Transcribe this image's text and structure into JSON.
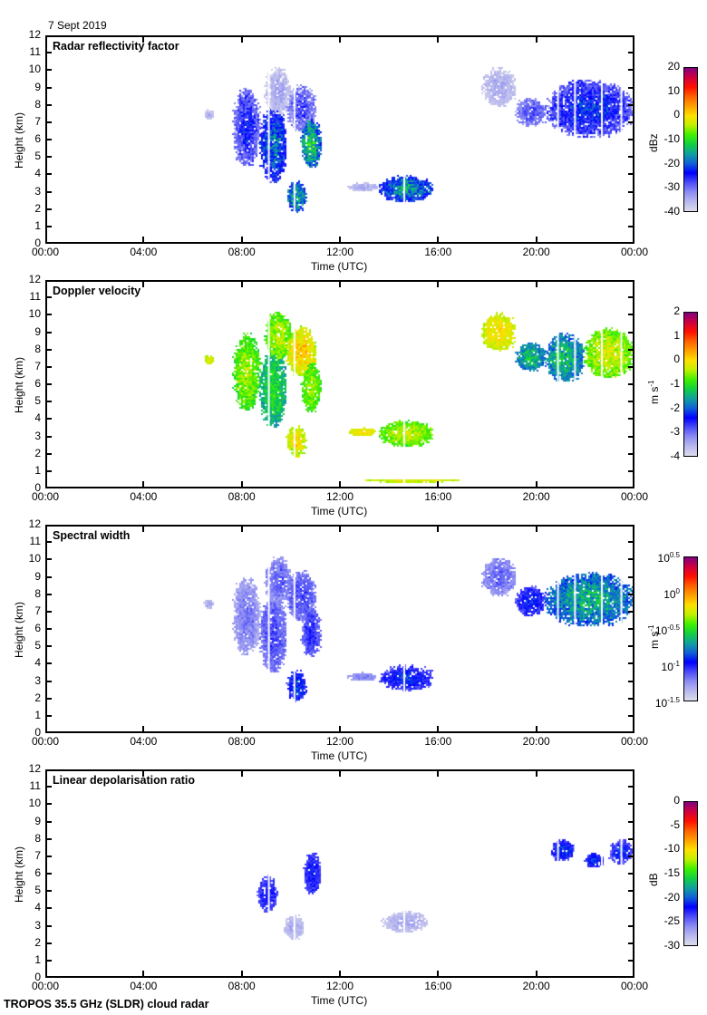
{
  "date": "7 Sept 2019",
  "footer": "TROPOS 35.5 GHz (SLDR) cloud radar",
  "colors": {
    "colormap": [
      "#dcdcec",
      "#b8b8ee",
      "#8c8cf4",
      "#4c4cf8",
      "#0000ff",
      "#1060d8",
      "#10a0a0",
      "#10d040",
      "#40f000",
      "#c0f000",
      "#ffe000",
      "#ffa000",
      "#ff6000",
      "#ff1000",
      "#d00040",
      "#800080"
    ]
  },
  "chart_data": [
    {
      "type": "heatmap",
      "title": "Radar reflectivity factor",
      "xlabel": "Time (UTC)",
      "ylabel": "Height (km)",
      "xlim": [
        0,
        24
      ],
      "ylim": [
        0,
        12
      ],
      "x_ticks": [
        "00:00",
        "04:00",
        "08:00",
        "12:00",
        "16:00",
        "20:00",
        "00:00"
      ],
      "y_ticks": [
        "0",
        "1",
        "2",
        "3",
        "4",
        "5",
        "6",
        "7",
        "8",
        "9",
        "10",
        "11",
        "12"
      ],
      "colorbar": {
        "unit": "dBz",
        "range": [
          -40,
          20
        ],
        "ticks": [
          "20",
          "10",
          "0",
          "-10",
          "-20",
          "-30",
          "-40"
        ],
        "scale": "linear"
      },
      "clouds": [
        {
          "t": [
            6.4,
            6.8
          ],
          "h": [
            7.2,
            7.8
          ],
          "v": -36,
          "s": 4
        },
        {
          "t": [
            7.6,
            8.7
          ],
          "h": [
            4.5,
            9.0
          ],
          "v": -28,
          "s": 7
        },
        {
          "t": [
            8.7,
            9.8
          ],
          "h": [
            3.5,
            8.0
          ],
          "v": -22,
          "s": 8
        },
        {
          "t": [
            8.9,
            10.0
          ],
          "h": [
            7.5,
            10.2
          ],
          "v": -36,
          "s": 4
        },
        {
          "t": [
            9.8,
            10.6
          ],
          "h": [
            1.8,
            3.6
          ],
          "v": -18,
          "s": 9
        },
        {
          "t": [
            9.8,
            11.0
          ],
          "h": [
            6.5,
            9.2
          ],
          "v": -30,
          "s": 6
        },
        {
          "t": [
            10.4,
            11.2
          ],
          "h": [
            4.4,
            7.2
          ],
          "v": -16,
          "s": 10
        },
        {
          "t": [
            12.3,
            13.5
          ],
          "h": [
            3.0,
            3.5
          ],
          "v": -36,
          "s": 3
        },
        {
          "t": [
            13.6,
            15.8
          ],
          "h": [
            2.4,
            3.9
          ],
          "v": -20,
          "s": 9
        },
        {
          "t": [
            17.8,
            19.2
          ],
          "h": [
            8.0,
            10.2
          ],
          "v": -36,
          "s": 3
        },
        {
          "t": [
            19.2,
            20.4
          ],
          "h": [
            6.8,
            8.5
          ],
          "v": -30,
          "s": 5
        },
        {
          "t": [
            20.4,
            24.0
          ],
          "h": [
            6.2,
            9.5
          ],
          "v": -26,
          "s": 8
        }
      ]
    },
    {
      "type": "heatmap",
      "title": "Doppler velocity",
      "xlabel": "Time (UTC)",
      "ylabel": "Height (km)",
      "xlim": [
        0,
        24
      ],
      "ylim": [
        0,
        12
      ],
      "x_ticks": [
        "00:00",
        "04:00",
        "08:00",
        "12:00",
        "16:00",
        "20:00",
        "00:00"
      ],
      "y_ticks": [
        "0",
        "1",
        "2",
        "3",
        "4",
        "5",
        "6",
        "7",
        "8",
        "9",
        "10",
        "11",
        "12"
      ],
      "colorbar": {
        "unit": "m s",
        "unit_sup": "-1",
        "range": [
          -4,
          2
        ],
        "ticks": [
          "2",
          "1",
          "0",
          "-1",
          "-2",
          "-3",
          "-4"
        ],
        "scale": "linear"
      },
      "clouds": [
        {
          "t": [
            6.4,
            6.8
          ],
          "h": [
            7.2,
            7.8
          ],
          "v": -0.3,
          "s": 0.4
        },
        {
          "t": [
            7.6,
            8.7
          ],
          "h": [
            4.5,
            9.0
          ],
          "v": -0.7,
          "s": 0.6
        },
        {
          "t": [
            8.7,
            9.8
          ],
          "h": [
            3.5,
            8.0
          ],
          "v": -1.3,
          "s": 0.6
        },
        {
          "t": [
            8.9,
            10.0
          ],
          "h": [
            7.5,
            10.2
          ],
          "v": -0.6,
          "s": 0.6
        },
        {
          "t": [
            9.8,
            10.6
          ],
          "h": [
            1.8,
            3.6
          ],
          "v": -0.2,
          "s": 0.6
        },
        {
          "t": [
            9.8,
            11.0
          ],
          "h": [
            6.5,
            9.4
          ],
          "v": -0.1,
          "s": 0.6
        },
        {
          "t": [
            10.4,
            11.2
          ],
          "h": [
            4.4,
            7.2
          ],
          "v": -0.7,
          "s": 0.5
        },
        {
          "t": [
            12.3,
            13.5
          ],
          "h": [
            3.0,
            3.5
          ],
          "v": -0.2,
          "s": 0.3
        },
        {
          "t": [
            13.6,
            15.8
          ],
          "h": [
            2.4,
            3.9
          ],
          "v": -0.6,
          "s": 0.5
        },
        {
          "t": [
            17.8,
            19.2
          ],
          "h": [
            8.0,
            10.2
          ],
          "v": -0.2,
          "s": 0.4
        },
        {
          "t": [
            19.2,
            20.4
          ],
          "h": [
            6.8,
            8.5
          ],
          "v": -1.6,
          "s": 0.6
        },
        {
          "t": [
            20.4,
            22.0
          ],
          "h": [
            6.2,
            9.0
          ],
          "v": -1.6,
          "s": 0.7
        },
        {
          "t": [
            22.0,
            24.0
          ],
          "h": [
            6.4,
            9.3
          ],
          "v": -0.5,
          "s": 0.6
        },
        {
          "t": [
            13.0,
            17.0
          ],
          "h": [
            0.3,
            0.5
          ],
          "v": -0.3,
          "s": 0.3
        }
      ]
    },
    {
      "type": "heatmap",
      "title": "Spectral width",
      "xlabel": "Time (UTC)",
      "ylabel": "Height (km)",
      "xlim": [
        0,
        24
      ],
      "ylim": [
        0,
        12
      ],
      "x_ticks": [
        "00:00",
        "04:00",
        "08:00",
        "12:00",
        "16:00",
        "20:00",
        "00:00"
      ],
      "y_ticks": [
        "0",
        "1",
        "2",
        "3",
        "4",
        "5",
        "6",
        "7",
        "8",
        "9",
        "10",
        "11",
        "12"
      ],
      "colorbar": {
        "unit": "m s",
        "unit_sup": "-1",
        "range": [
          -1.5,
          0.5
        ],
        "ticks": [
          {
            "base": "10",
            "exp": "0.5"
          },
          {
            "base": "10",
            "exp": "0"
          },
          {
            "base": "10",
            "exp": "-0.5"
          },
          {
            "base": "10",
            "exp": "-1"
          },
          {
            "base": "10",
            "exp": "-1.5"
          }
        ],
        "scale": "log10"
      },
      "clouds": [
        {
          "t": [
            6.4,
            6.8
          ],
          "h": [
            7.2,
            7.8
          ],
          "v": -1.35,
          "s": 0.1
        },
        {
          "t": [
            7.6,
            8.7
          ],
          "h": [
            4.5,
            9.0
          ],
          "v": -1.25,
          "s": 0.15
        },
        {
          "t": [
            8.7,
            9.8
          ],
          "h": [
            3.5,
            8.0
          ],
          "v": -1.15,
          "s": 0.15
        },
        {
          "t": [
            8.9,
            10.0
          ],
          "h": [
            7.5,
            10.2
          ],
          "v": -1.2,
          "s": 0.15
        },
        {
          "t": [
            9.8,
            10.6
          ],
          "h": [
            1.8,
            3.6
          ],
          "v": -0.95,
          "s": 0.2
        },
        {
          "t": [
            9.8,
            11.0
          ],
          "h": [
            6.5,
            9.4
          ],
          "v": -1.15,
          "s": 0.15
        },
        {
          "t": [
            10.4,
            11.2
          ],
          "h": [
            4.4,
            7.2
          ],
          "v": -1.1,
          "s": 0.15
        },
        {
          "t": [
            12.3,
            13.5
          ],
          "h": [
            3.0,
            3.5
          ],
          "v": -1.25,
          "s": 0.1
        },
        {
          "t": [
            13.6,
            15.8
          ],
          "h": [
            2.4,
            3.9
          ],
          "v": -1.0,
          "s": 0.2
        },
        {
          "t": [
            17.8,
            19.2
          ],
          "h": [
            8.0,
            10.2
          ],
          "v": -1.2,
          "s": 0.15
        },
        {
          "t": [
            19.2,
            20.4
          ],
          "h": [
            6.8,
            8.5
          ],
          "v": -1.0,
          "s": 0.2
        },
        {
          "t": [
            20.4,
            24.0
          ],
          "h": [
            6.2,
            9.3
          ],
          "v": -0.75,
          "s": 0.25
        }
      ]
    },
    {
      "type": "heatmap",
      "title": "Linear depolarisation ratio",
      "xlabel": "Time (UTC)",
      "ylabel": "Height (km)",
      "xlim": [
        0,
        24
      ],
      "ylim": [
        0,
        12
      ],
      "x_ticks": [
        "00:00",
        "04:00",
        "08:00",
        "12:00",
        "16:00",
        "20:00",
        "00:00"
      ],
      "y_ticks": [
        "0",
        "1",
        "2",
        "3",
        "4",
        "5",
        "6",
        "7",
        "8",
        "9",
        "10",
        "11",
        "12"
      ],
      "colorbar": {
        "unit": "dB",
        "range": [
          -30,
          0
        ],
        "ticks": [
          "0",
          "-5",
          "-10",
          "-15",
          "-20",
          "-25",
          "-30"
        ],
        "scale": "linear"
      },
      "clouds": [
        {
          "t": [
            8.6,
            9.4
          ],
          "h": [
            3.8,
            5.9
          ],
          "v": -23,
          "s": 2
        },
        {
          "t": [
            9.7,
            10.5
          ],
          "h": [
            2.2,
            3.6
          ],
          "v": -28,
          "s": 1.5
        },
        {
          "t": [
            10.5,
            11.2
          ],
          "h": [
            4.8,
            7.3
          ],
          "v": -23,
          "s": 2
        },
        {
          "t": [
            13.7,
            15.6
          ],
          "h": [
            2.6,
            3.8
          ],
          "v": -28,
          "s": 1.5
        },
        {
          "t": [
            20.6,
            21.6
          ],
          "h": [
            6.8,
            8.0
          ],
          "v": -22,
          "s": 3
        },
        {
          "t": [
            22.0,
            22.8
          ],
          "h": [
            6.4,
            7.2
          ],
          "v": -22,
          "s": 3
        },
        {
          "t": [
            23.0,
            24.0
          ],
          "h": [
            6.6,
            8.0
          ],
          "v": -23,
          "s": 3
        }
      ]
    }
  ]
}
